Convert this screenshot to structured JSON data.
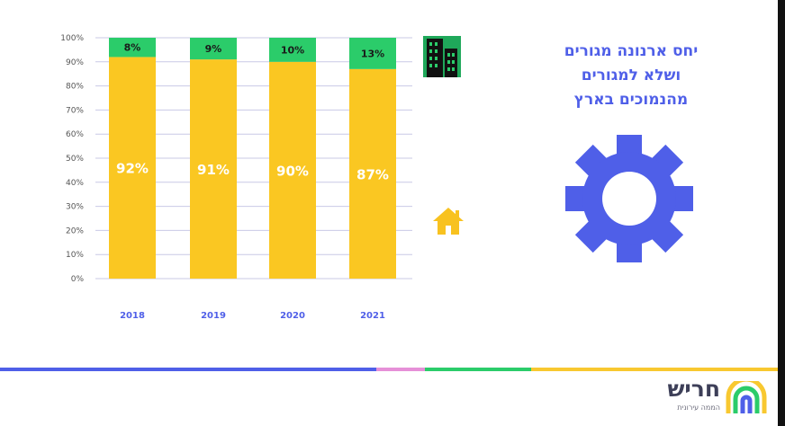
{
  "heading": {
    "line1": "יחס ארנונה מגורים",
    "line2": "ושלא למגורים",
    "line3": "מהנמוכים בארץ"
  },
  "logo": {
    "name": "חריש",
    "subtitle": "הממה עירונית"
  },
  "colors": {
    "residential": "#fac722",
    "non_residential": "#2bcc6a",
    "heading": "#4f5fe8",
    "gear": "#4f5fe8",
    "axis_text": "#555555",
    "category_text": "#4f5fe8",
    "footer": [
      "#4f5fe8",
      "#e690d8",
      "#2bcc6a",
      "#f8c830"
    ]
  },
  "icons": {
    "building": "building-icon",
    "home": "home-icon",
    "gear": "gear-icon"
  },
  "chart_data": {
    "type": "bar",
    "stacked": true,
    "categories": [
      "2018",
      "2019",
      "2020",
      "2021"
    ],
    "series": [
      {
        "key": "residential",
        "values": [
          92,
          91,
          90,
          87
        ],
        "labels": [
          "92%",
          "91%",
          "90%",
          "87%"
        ]
      },
      {
        "key": "non_residential",
        "values": [
          8,
          9,
          10,
          13
        ],
        "labels": [
          "8%",
          "9%",
          "10%",
          "13%"
        ]
      }
    ],
    "ylim": [
      0,
      100
    ],
    "yticks": [
      "0%",
      "10%",
      "20%",
      "30%",
      "40%",
      "50%",
      "60%",
      "70%",
      "80%",
      "90%",
      "100%"
    ],
    "grid": true
  }
}
